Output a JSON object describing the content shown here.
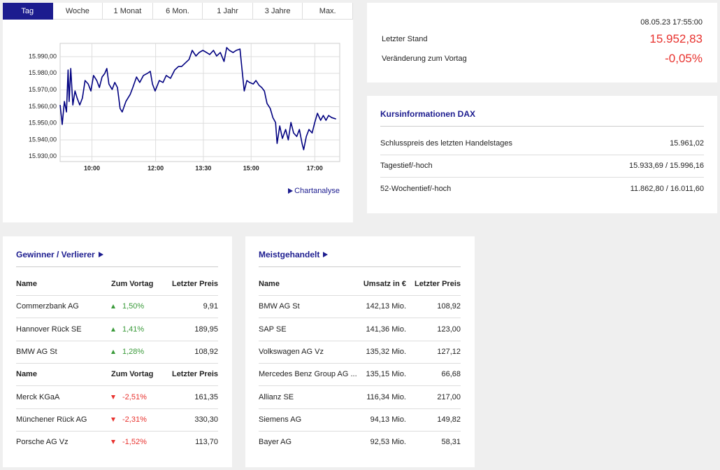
{
  "tabs": [
    "Tag",
    "Woche",
    "1 Monat",
    "6 Mon.",
    "1 Jahr",
    "3 Jahre",
    "Max."
  ],
  "chart_data": {
    "type": "line",
    "color": "#000080",
    "grid": true,
    "x": [
      540,
      544,
      548,
      552,
      555,
      557,
      560,
      564,
      568,
      572,
      577,
      582,
      587,
      593,
      598,
      603,
      609,
      614,
      619,
      624,
      628,
      632,
      638,
      643,
      648,
      653,
      657,
      664,
      672,
      677,
      684,
      690,
      697,
      704,
      710,
      714,
      719,
      727,
      734,
      740,
      748,
      756,
      763,
      769,
      776,
      783,
      789,
      796,
      802,
      809,
      816,
      822,
      829,
      835,
      842,
      849,
      854,
      859,
      866,
      872,
      879,
      883,
      887,
      892,
      897,
      904,
      909,
      915,
      920,
      925,
      930,
      936,
      941,
      946,
      949,
      954,
      959,
      965,
      970,
      975,
      980,
      986,
      991,
      996,
      999,
      1004,
      1009,
      1015,
      1020,
      1025,
      1031,
      1036,
      1041,
      1046,
      1052,
      1060
    ],
    "values": [
      15961.0,
      15949.3,
      15963.1,
      15956.8,
      15982.0,
      15963.1,
      15982.9,
      15961.0,
      15969.4,
      15965.2,
      15961.0,
      15965.2,
      15975.7,
      15973.6,
      15969.4,
      15978.7,
      15975.7,
      15971.5,
      15977.8,
      15979.9,
      15982.9,
      15973.6,
      15970.3,
      15974.5,
      15971.5,
      15958.9,
      15956.8,
      15963.1,
      15967.3,
      15971.5,
      15977.8,
      15974.5,
      15978.7,
      15979.9,
      15981.2,
      15973.6,
      15969.4,
      15975.7,
      15974.5,
      15978.7,
      15977.0,
      15982.0,
      15984.1,
      15984.1,
      15986.2,
      15988.3,
      15993.8,
      15990.4,
      15992.5,
      15993.8,
      15992.5,
      15991.3,
      15993.8,
      15990.4,
      15992.5,
      15987.1,
      15995.5,
      15993.8,
      15992.5,
      15993.8,
      15994.6,
      15982.0,
      15969.4,
      15975.7,
      15974.5,
      15973.6,
      15975.7,
      15972.8,
      15971.5,
      15969.4,
      15961.9,
      15958.9,
      15953.4,
      15950.5,
      15937.9,
      15948.4,
      15940.9,
      15946.3,
      15940.0,
      15950.5,
      15944.2,
      15942.1,
      15946.3,
      15937.9,
      15934.1,
      15942.1,
      15946.3,
      15944.2,
      15950.5,
      15956.0,
      15951.8,
      15954.7,
      15951.8,
      15954.7,
      15953.4,
      15952.6
    ],
    "xlim": [
      540,
      1067
    ],
    "xticks": [
      {
        "value": 600,
        "label": "10:00"
      },
      {
        "value": 720,
        "label": "12:00"
      },
      {
        "value": 810,
        "label": "13:30"
      },
      {
        "value": 900,
        "label": "15:00"
      },
      {
        "value": 1020,
        "label": "17:00"
      }
    ],
    "ylim": [
      15927,
      15998
    ],
    "yticks": [
      {
        "value": 15930,
        "label": "15.930,00"
      },
      {
        "value": 15940,
        "label": "15.940,00"
      },
      {
        "value": 15950,
        "label": "15.950,00"
      },
      {
        "value": 15960,
        "label": "15.960,00"
      },
      {
        "value": 15970,
        "label": "15.970,00"
      },
      {
        "value": 15980,
        "label": "15.980,00"
      },
      {
        "value": 15990,
        "label": "15.990,00"
      }
    ]
  },
  "chart_link": "Chartanalyse",
  "quote": {
    "timestamp": "08.05.23 17:55:00",
    "color": "#e8322e",
    "rows": [
      {
        "label": "Letzter Stand",
        "value": "15.952,83"
      },
      {
        "label": "Veränderung zum Vortag",
        "value": "-0,05%"
      }
    ]
  },
  "kursinfo": {
    "title": "Kursinformationen DAX",
    "rows": [
      {
        "label": "Schlusspreis des letzten Handelstages",
        "value": "15.961,02"
      },
      {
        "label": "Tagestief/-hoch",
        "value": "15.933,69 / 15.996,16"
      },
      {
        "label": "52-Wochentief/-hoch",
        "value": "11.862,80 / 16.011,60"
      }
    ]
  },
  "winners": {
    "title": "Gewinner / Verlierer",
    "groups": [
      {
        "color": "#3a9a3a",
        "header": [
          "Name",
          "Zum Vortag",
          "Letzter Preis"
        ],
        "rows": [
          [
            "Commerzbank AG",
            "1,50%",
            "9,91"
          ],
          [
            "Hannover Rück SE",
            "1,41%",
            "189,95"
          ],
          [
            "BMW AG St",
            "1,28%",
            "108,92"
          ]
        ]
      },
      {
        "color": "#e8322e",
        "header": [
          "Name",
          "Zum Vortag",
          "Letzter Preis"
        ],
        "rows": [
          [
            "Merck KGaA",
            "-2,51%",
            "161,35"
          ],
          [
            "Münchener Rück AG",
            "-2,31%",
            "330,30"
          ],
          [
            "Porsche AG Vz",
            "-1,52%",
            "113,70"
          ]
        ]
      }
    ]
  },
  "most_traded": {
    "title": "Meistgehandelt",
    "header": [
      "Name",
      "Umsatz in €",
      "Letzter Preis"
    ],
    "rows": [
      [
        "BMW AG St",
        "142,13 Mio.",
        "108,92"
      ],
      [
        "SAP SE",
        "141,36 Mio.",
        "123,00"
      ],
      [
        "Volkswagen AG Vz",
        "135,32 Mio.",
        "127,12"
      ],
      [
        "Mercedes Benz Group AG ...",
        "135,15 Mio.",
        "66,68"
      ],
      [
        "Allianz SE",
        "116,34 Mio.",
        "217,00"
      ],
      [
        "Siemens AG",
        "94,13 Mio.",
        "149,82"
      ],
      [
        "Bayer AG",
        "92,53 Mio.",
        "58,31"
      ]
    ]
  }
}
